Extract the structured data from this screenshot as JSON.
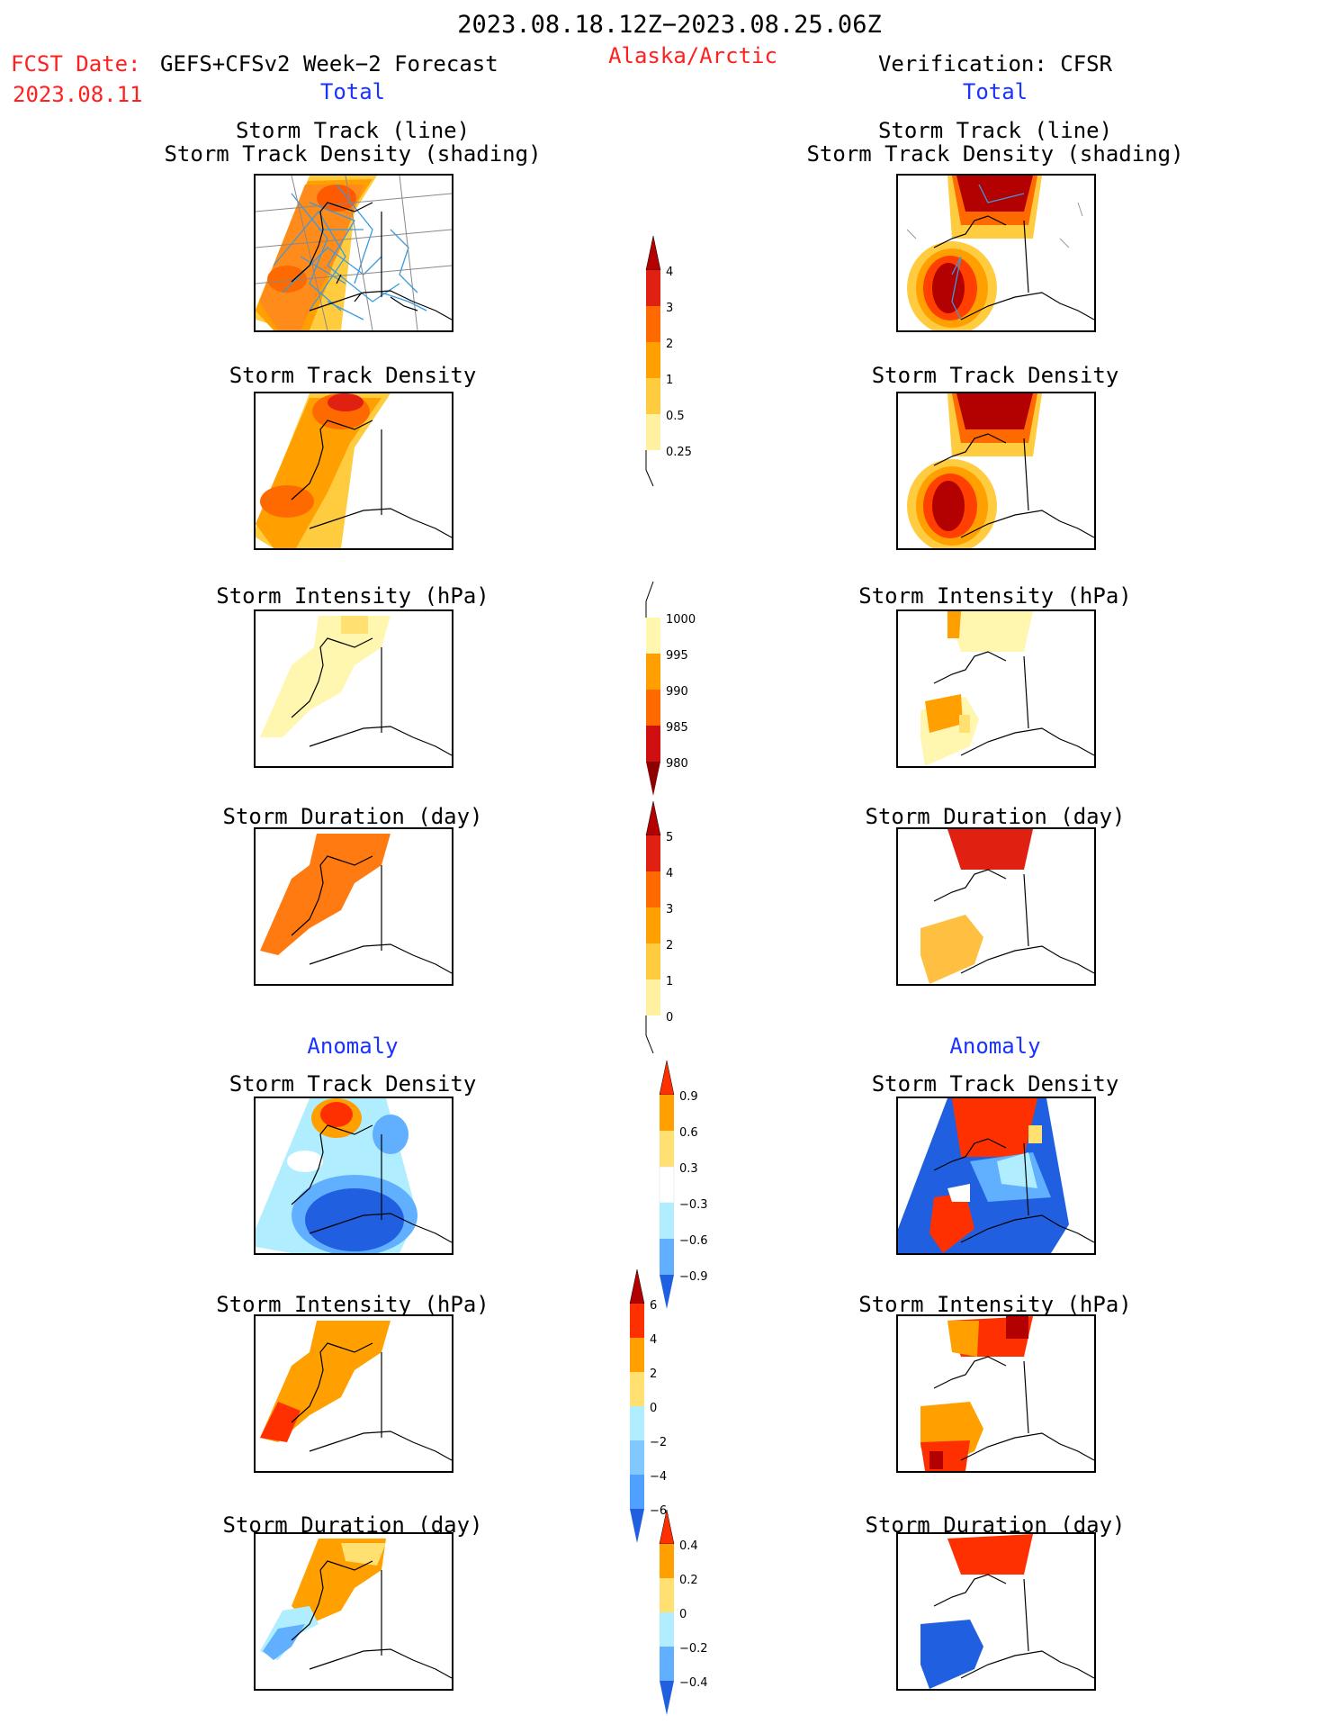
{
  "header": {
    "period": "2023.08.18.12Z−2023.08.25.06Z",
    "region": "Alaska/Arctic",
    "fcst_date_label": "FCST Date:",
    "fcst_model": "GEFS+CFSv2 Week−2 Forecast",
    "fcst_date": "2023.08.11",
    "verification": "Verification: CFSR"
  },
  "sections": {
    "total": "Total",
    "anomaly": "Anomaly"
  },
  "panel_titles": {
    "track_line": "Storm Track (line)",
    "track_shading": "Storm Track Density (shading)",
    "density": "Storm Track Density",
    "intensity": "Storm Intensity (hPa)",
    "duration": "Storm Duration (day)"
  },
  "colorbars": {
    "density_total": {
      "ticks": [
        "4",
        "3",
        "2",
        "1",
        "0.5",
        "0.25"
      ],
      "colors": [
        "#b30000",
        "#e02010",
        "#ff6a00",
        "#ffa000",
        "#ffcc40",
        "#fff1a0"
      ]
    },
    "intensity_total": {
      "ticks": [
        "1000",
        "995",
        "990",
        "985",
        "980"
      ],
      "colors": [
        "#fff6b0",
        "#ffa000",
        "#ff6a00",
        "#d01010",
        "#8b0000"
      ]
    },
    "duration_total": {
      "ticks": [
        "5",
        "4",
        "3",
        "2",
        "1",
        "0"
      ],
      "colors": [
        "#b30000",
        "#e02010",
        "#ff6a00",
        "#ffa000",
        "#ffcc40",
        "#fff1a0"
      ]
    },
    "density_anom": {
      "ticks": [
        "0.9",
        "0.6",
        "0.3",
        "−0.3",
        "−0.6",
        "−0.9"
      ],
      "colors": [
        "#ff3000",
        "#ffa000",
        "#ffe070",
        "#ffffff",
        "#b0eeff",
        "#60b0ff",
        "#2060e0"
      ]
    },
    "intensity_anom": {
      "ticks": [
        "6",
        "4",
        "2",
        "0",
        "−2",
        "−4",
        "−6"
      ],
      "colors": [
        "#b30000",
        "#ff3000",
        "#ffa000",
        "#ffe070",
        "#b0eeff",
        "#80c8ff",
        "#50a0ff",
        "#2060e0"
      ]
    },
    "duration_anom": {
      "ticks": [
        "0.4",
        "0.2",
        "0",
        "−0.2",
        "−0.4"
      ],
      "colors": [
        "#ff3000",
        "#ffa000",
        "#ffe070",
        "#b0eeff",
        "#60b0ff",
        "#2060e0"
      ]
    }
  }
}
